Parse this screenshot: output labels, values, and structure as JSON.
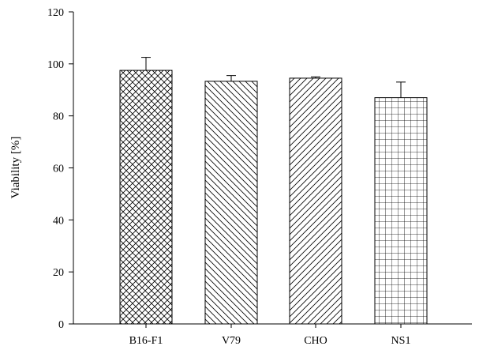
{
  "chart_data": {
    "type": "bar",
    "title": "",
    "xlabel": "",
    "ylabel": "Viability [%]",
    "ylim": [
      0,
      120
    ],
    "yticks": [
      0,
      20,
      40,
      60,
      80,
      100,
      120
    ],
    "categories": [
      "B16-F1",
      "V79",
      "CHO",
      "NS1"
    ],
    "values": [
      97.5,
      93.3,
      94.5,
      87.0
    ],
    "errors": [
      5.0,
      2.2,
      0.5,
      6.0
    ],
    "patterns": [
      "crosshatch",
      "back-diagonal",
      "forward-diagonal",
      "grid"
    ],
    "bar_fill": "#ffffff",
    "stroke_color": "#000000",
    "grid": false,
    "legend": "none"
  }
}
